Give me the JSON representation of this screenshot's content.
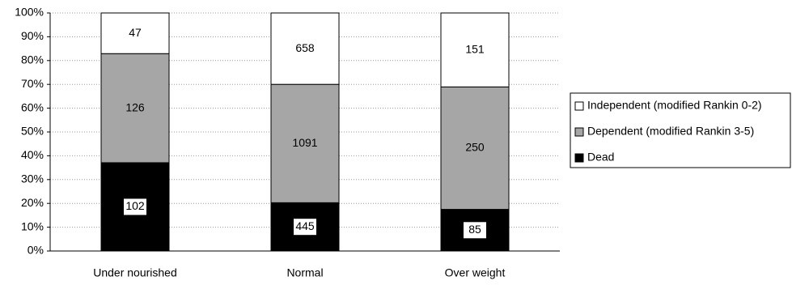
{
  "chart_data": {
    "type": "bar",
    "stacked": "percent",
    "categories": [
      "Under nourished",
      "Normal",
      "Over weight"
    ],
    "series": [
      {
        "name": "Dead",
        "color": "#000000",
        "values": [
          102,
          445,
          85
        ]
      },
      {
        "name": "Dependent (modified Rankin 3-5)",
        "color": "#a6a6a6",
        "values": [
          126,
          1091,
          250
        ]
      },
      {
        "name": "Independent (modified Rankin 0-2)",
        "color": "#ffffff",
        "values": [
          47,
          658,
          151
        ]
      }
    ],
    "ylim": [
      0,
      100
    ],
    "yticks": [
      {
        "value": 0,
        "label": "0%"
      },
      {
        "value": 10,
        "label": "10%"
      },
      {
        "value": 20,
        "label": "20%"
      },
      {
        "value": 30,
        "label": "30%"
      },
      {
        "value": 40,
        "label": "40%"
      },
      {
        "value": 50,
        "label": "50%"
      },
      {
        "value": 60,
        "label": "60%"
      },
      {
        "value": 70,
        "label": "70%"
      },
      {
        "value": 80,
        "label": "80%"
      },
      {
        "value": 90,
        "label": "90%"
      },
      {
        "value": 100,
        "label": "100%"
      }
    ],
    "grid": true,
    "legend": "right"
  }
}
